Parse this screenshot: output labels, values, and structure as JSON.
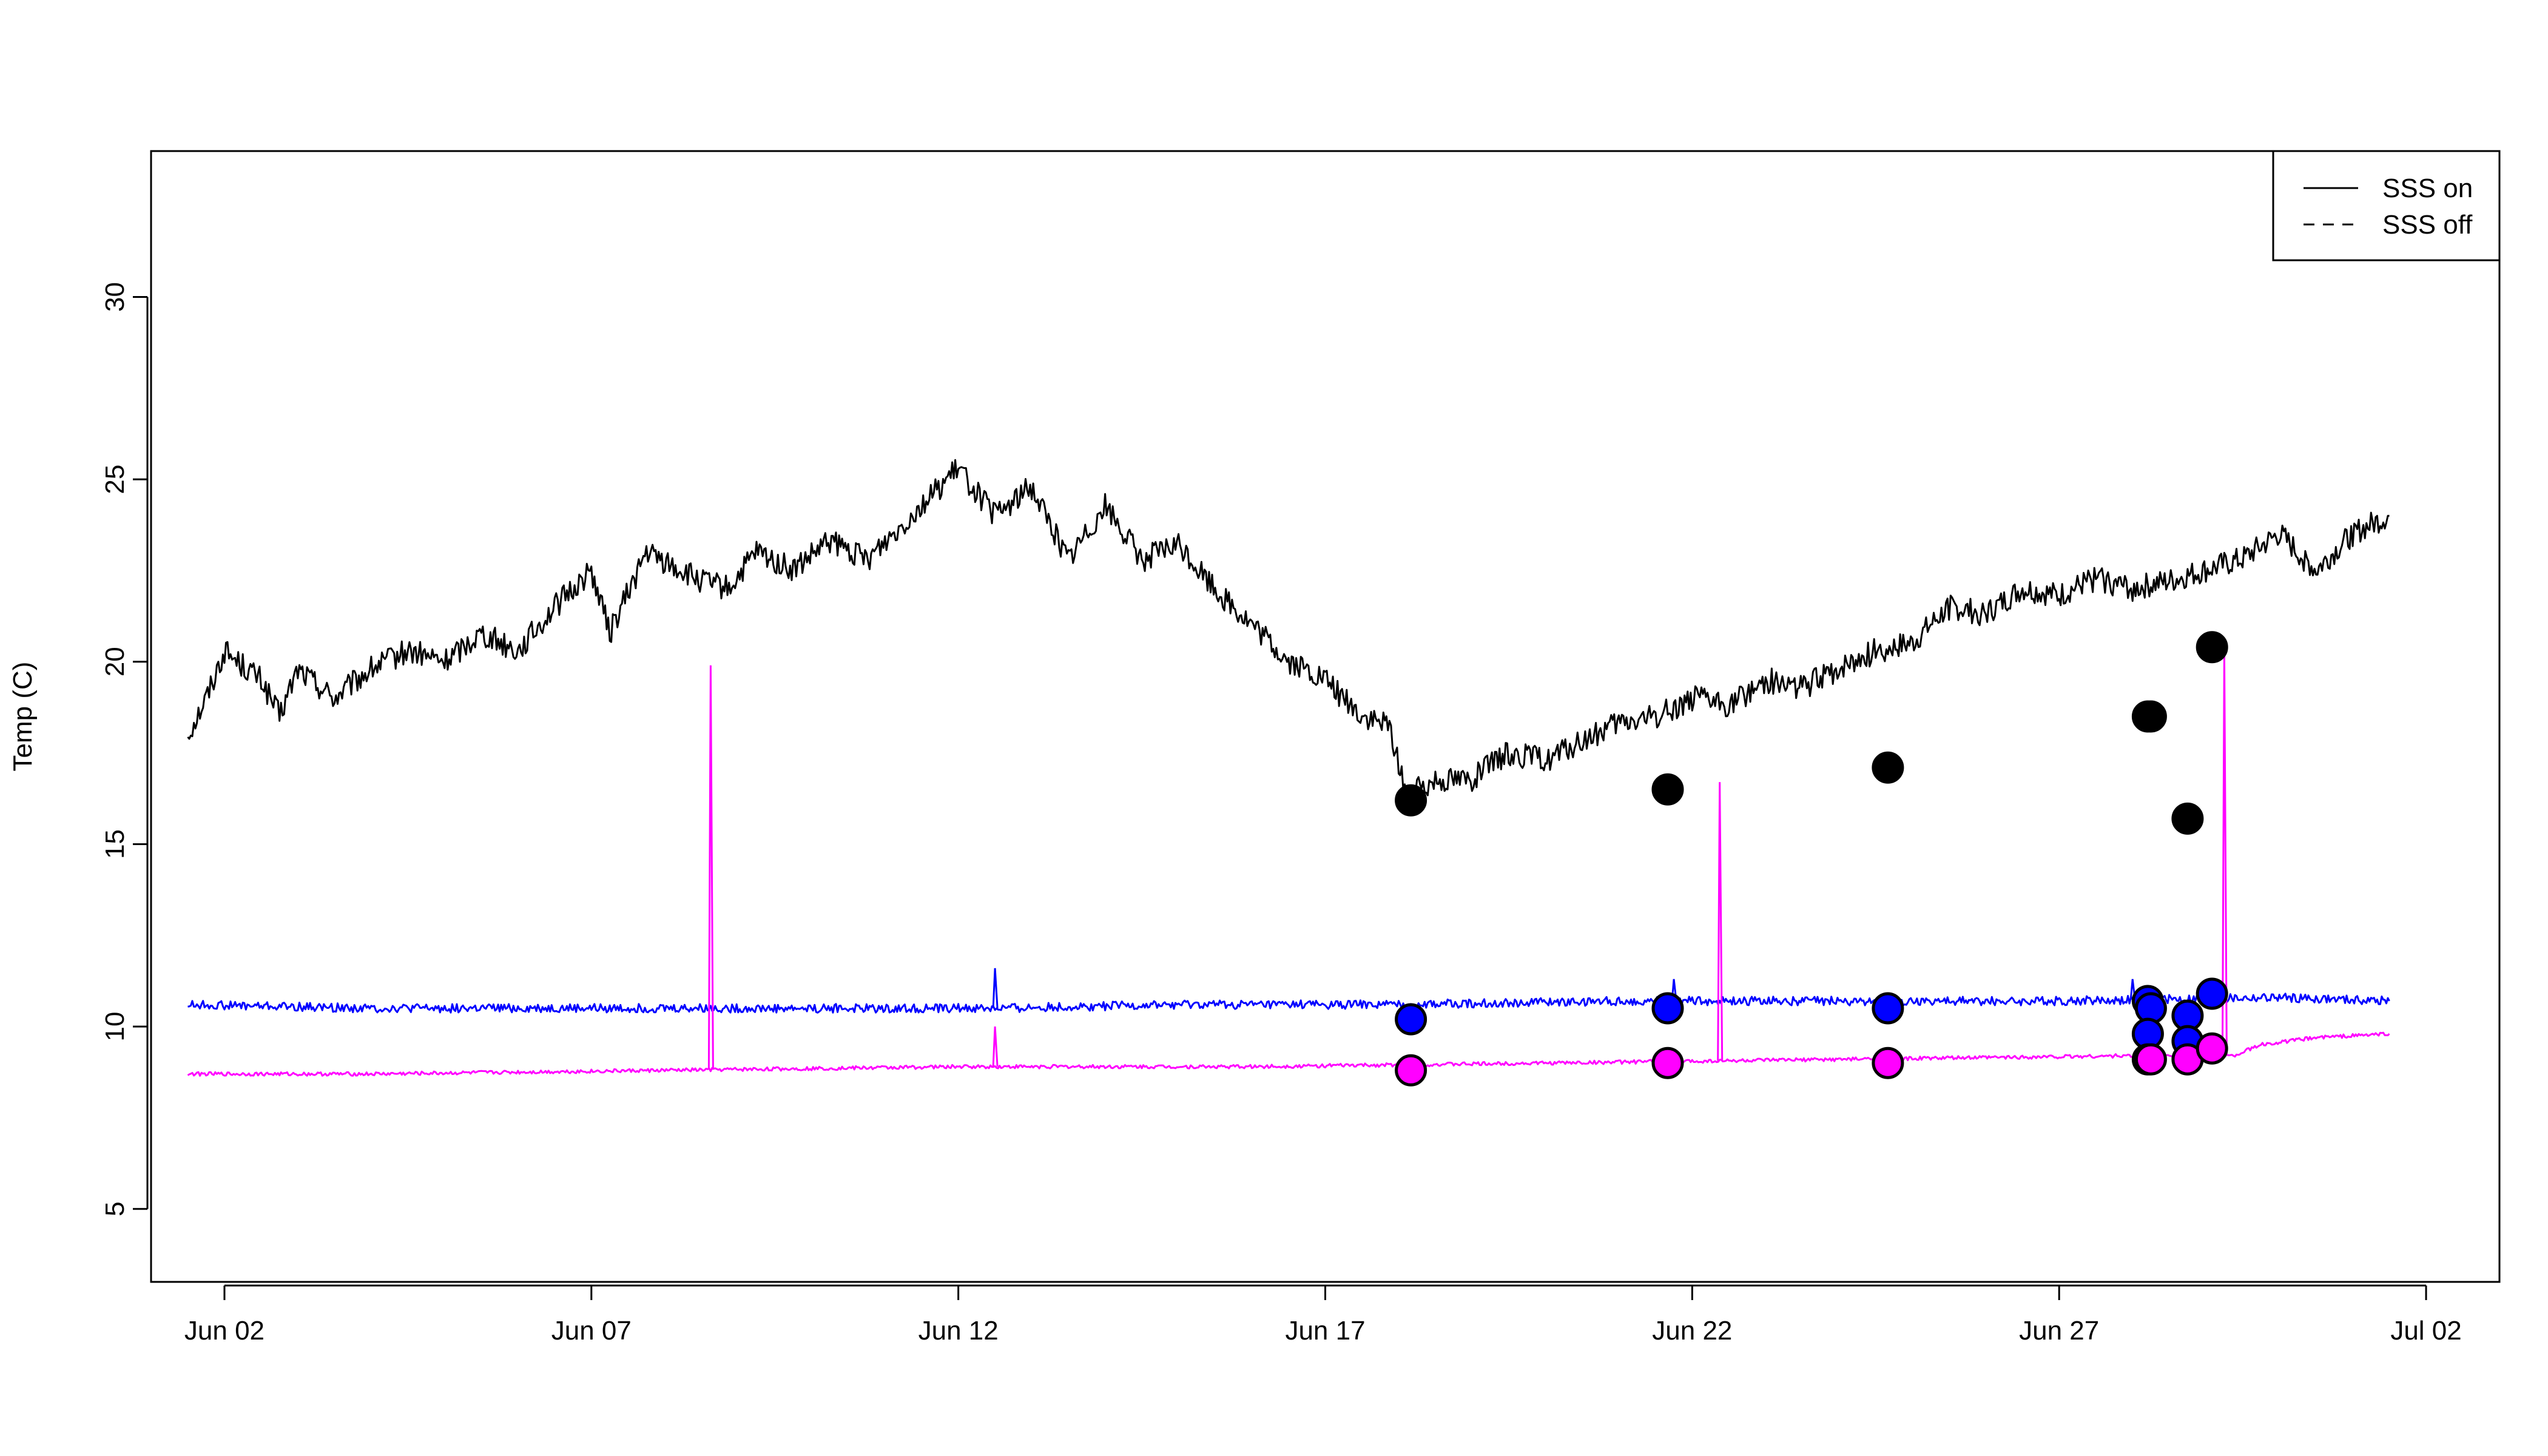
{
  "chart_data": {
    "type": "line",
    "title": "",
    "xlabel": "",
    "ylabel": "Temp (C)",
    "xlim": [
      "2021-06-01",
      "2021-07-03"
    ],
    "ylim": [
      3,
      34
    ],
    "x_ticks": [
      {
        "date": "2021-06-02",
        "label": "Jun 02"
      },
      {
        "date": "2021-06-07",
        "label": "Jun 07"
      },
      {
        "date": "2021-06-12",
        "label": "Jun 12"
      },
      {
        "date": "2021-06-17",
        "label": "Jun 17"
      },
      {
        "date": "2021-06-22",
        "label": "Jun 22"
      },
      {
        "date": "2021-06-27",
        "label": "Jun 27"
      },
      {
        "date": "2021-07-02",
        "label": "Jul 02"
      }
    ],
    "y_ticks": [
      5,
      10,
      15,
      20,
      25,
      30
    ],
    "legend": {
      "position": "top-right",
      "entries": [
        {
          "label": "SSS on",
          "style": "solid"
        },
        {
          "label": "SSS off",
          "style": "dashed"
        }
      ]
    },
    "series": [
      {
        "color": "#000000",
        "style": "solid",
        "points": [
          [
            "2021-06-01 12:00",
            18.0
          ],
          [
            "2021-06-01 18:00",
            19.0
          ],
          [
            "2021-06-02 00:00",
            20.3
          ],
          [
            "2021-06-02 12:00",
            19.5
          ],
          [
            "2021-06-02 18:00",
            18.5
          ],
          [
            "2021-06-03 00:00",
            19.8
          ],
          [
            "2021-06-03 12:00",
            19.0
          ],
          [
            "2021-06-04 00:00",
            19.8
          ],
          [
            "2021-06-04 12:00",
            20.3
          ],
          [
            "2021-06-05 00:00",
            20.0
          ],
          [
            "2021-06-05 12:00",
            20.8
          ],
          [
            "2021-06-06 00:00",
            20.3
          ],
          [
            "2021-06-06 12:00",
            21.5
          ],
          [
            "2021-06-07 00:00",
            22.5
          ],
          [
            "2021-06-07 06:00",
            20.8
          ],
          [
            "2021-06-07 18:00",
            23.0
          ],
          [
            "2021-06-08 12:00",
            22.2
          ],
          [
            "2021-06-08 21:00",
            22.0
          ],
          [
            "2021-06-09 06:00",
            23.0
          ],
          [
            "2021-06-09 18:00",
            22.5
          ],
          [
            "2021-06-10 06:00",
            23.3
          ],
          [
            "2021-06-10 18:00",
            22.8
          ],
          [
            "2021-06-11 06:00",
            23.8
          ],
          [
            "2021-06-11 18:00",
            24.8
          ],
          [
            "2021-06-12 00:00",
            25.3
          ],
          [
            "2021-06-12 12:00",
            24.0
          ],
          [
            "2021-06-13 00:00",
            24.8
          ],
          [
            "2021-06-13 12:00",
            22.8
          ],
          [
            "2021-06-14 00:00",
            24.3
          ],
          [
            "2021-06-14 12:00",
            22.8
          ],
          [
            "2021-06-15 00:00",
            23.2
          ],
          [
            "2021-06-15 12:00",
            22.0
          ],
          [
            "2021-06-16 00:00",
            21.0
          ],
          [
            "2021-06-16 12:00",
            20.0
          ],
          [
            "2021-06-17 00:00",
            19.5
          ],
          [
            "2021-06-17 12:00",
            18.5
          ],
          [
            "2021-06-17 21:00",
            18.2
          ],
          [
            "2021-06-18 03:00",
            16.3
          ],
          [
            "2021-06-18 12:00",
            16.8
          ],
          [
            "2021-06-19 00:00",
            16.8
          ],
          [
            "2021-06-19 12:00",
            17.5
          ],
          [
            "2021-06-20 00:00",
            17.3
          ],
          [
            "2021-06-20 12:00",
            17.8
          ],
          [
            "2021-06-21 00:00",
            18.3
          ],
          [
            "2021-06-21 12:00",
            18.5
          ],
          [
            "2021-06-22 00:00",
            19.0
          ],
          [
            "2021-06-22 12:00",
            18.8
          ],
          [
            "2021-06-23 00:00",
            19.5
          ],
          [
            "2021-06-23 12:00",
            19.3
          ],
          [
            "2021-06-24 00:00",
            19.8
          ],
          [
            "2021-06-24 12:00",
            20.3
          ],
          [
            "2021-06-25 00:00",
            20.5
          ],
          [
            "2021-06-25 12:00",
            21.5
          ],
          [
            "2021-06-26 00:00",
            21.3
          ],
          [
            "2021-06-26 12:00",
            22.0
          ],
          [
            "2021-06-27 00:00",
            21.8
          ],
          [
            "2021-06-27 12:00",
            22.3
          ],
          [
            "2021-06-28 00:00",
            22.0
          ],
          [
            "2021-06-28 12:00",
            22.2
          ],
          [
            "2021-06-29 00:00",
            22.5
          ],
          [
            "2021-06-29 12:00",
            22.8
          ],
          [
            "2021-06-30 00:00",
            23.5
          ],
          [
            "2021-06-30 12:00",
            22.5
          ],
          [
            "2021-07-01 00:00",
            23.5
          ],
          [
            "2021-07-01 12:00",
            24.0
          ]
        ]
      },
      {
        "color": "#0000ff",
        "style": "solid",
        "points": [
          [
            "2021-06-01 12:00",
            10.6
          ],
          [
            "2021-06-04 00:00",
            10.5
          ],
          [
            "2021-06-07 00:00",
            10.5
          ],
          [
            "2021-06-10 00:00",
            10.5
          ],
          [
            "2021-06-12 12:00",
            10.5
          ],
          [
            "2021-06-15 00:00",
            10.6
          ],
          [
            "2021-06-18 00:00",
            10.6
          ],
          [
            "2021-06-21 00:00",
            10.7
          ],
          [
            "2021-06-24 00:00",
            10.7
          ],
          [
            "2021-06-27 00:00",
            10.7
          ],
          [
            "2021-06-30 00:00",
            10.8
          ],
          [
            "2021-07-01 12:00",
            10.7
          ]
        ],
        "spikes": [
          {
            "x": "2021-06-12 12:00",
            "y": 11.6
          },
          {
            "x": "2021-06-21 18:00",
            "y": 11.3
          },
          {
            "x": "2021-06-28 00:00",
            "y": 11.3
          }
        ]
      },
      {
        "color": "#ff00ff",
        "style": "solid",
        "points": [
          [
            "2021-06-01 12:00",
            8.7
          ],
          [
            "2021-06-04 00:00",
            8.7
          ],
          [
            "2021-06-08 00:00",
            8.8
          ],
          [
            "2021-06-12 00:00",
            8.9
          ],
          [
            "2021-06-16 00:00",
            8.9
          ],
          [
            "2021-06-20 00:00",
            9.0
          ],
          [
            "2021-06-24 00:00",
            9.1
          ],
          [
            "2021-06-28 00:00",
            9.2
          ],
          [
            "2021-06-29 09:00",
            9.2
          ],
          [
            "2021-06-29 18:00",
            9.5
          ],
          [
            "2021-06-30 12:00",
            9.7
          ],
          [
            "2021-07-01 12:00",
            9.8
          ]
        ],
        "spikes": [
          {
            "x": "2021-06-08 15:00",
            "y": 19.9
          },
          {
            "x": "2021-06-12 12:00",
            "y": 10.0
          },
          {
            "x": "2021-06-22 09:00",
            "y": 16.7
          },
          {
            "x": "2021-06-29 06:00",
            "y": 20.3
          }
        ]
      }
    ],
    "points": [
      {
        "x": "2021-06-18 04:00",
        "y": 16.2,
        "color": "#000000"
      },
      {
        "x": "2021-06-21 16:00",
        "y": 16.5,
        "color": "#000000"
      },
      {
        "x": "2021-06-24 16:00",
        "y": 17.1,
        "color": "#000000"
      },
      {
        "x": "2021-06-28 05:00",
        "y": 18.5,
        "color": "#000000"
      },
      {
        "x": "2021-06-28 06:00",
        "y": 18.5,
        "color": "#000000"
      },
      {
        "x": "2021-06-28 18:00",
        "y": 15.7,
        "color": "#000000"
      },
      {
        "x": "2021-06-29 02:00",
        "y": 20.4,
        "color": "#000000"
      },
      {
        "x": "2021-06-18 04:00",
        "y": 10.2,
        "color": "#0000ff"
      },
      {
        "x": "2021-06-21 16:00",
        "y": 10.5,
        "color": "#0000ff"
      },
      {
        "x": "2021-06-24 16:00",
        "y": 10.5,
        "color": "#0000ff"
      },
      {
        "x": "2021-06-28 05:00",
        "y": 10.7,
        "color": "#0000ff"
      },
      {
        "x": "2021-06-28 06:00",
        "y": 10.5,
        "color": "#0000ff"
      },
      {
        "x": "2021-06-28 05:00",
        "y": 9.8,
        "color": "#0000ff"
      },
      {
        "x": "2021-06-28 18:00",
        "y": 10.3,
        "color": "#0000ff"
      },
      {
        "x": "2021-06-28 18:00",
        "y": 9.6,
        "color": "#0000ff"
      },
      {
        "x": "2021-06-29 02:00",
        "y": 10.9,
        "color": "#0000ff"
      },
      {
        "x": "2021-06-18 04:00",
        "y": 8.8,
        "color": "#ff00ff"
      },
      {
        "x": "2021-06-21 16:00",
        "y": 9.0,
        "color": "#ff00ff"
      },
      {
        "x": "2021-06-24 16:00",
        "y": 9.0,
        "color": "#ff00ff"
      },
      {
        "x": "2021-06-28 05:00",
        "y": 9.1,
        "color": "#ff00ff"
      },
      {
        "x": "2021-06-28 06:00",
        "y": 9.1,
        "color": "#ff00ff"
      },
      {
        "x": "2021-06-28 18:00",
        "y": 9.1,
        "color": "#ff00ff"
      },
      {
        "x": "2021-06-29 02:00",
        "y": 9.4,
        "color": "#ff00ff"
      }
    ],
    "grid": false
  }
}
